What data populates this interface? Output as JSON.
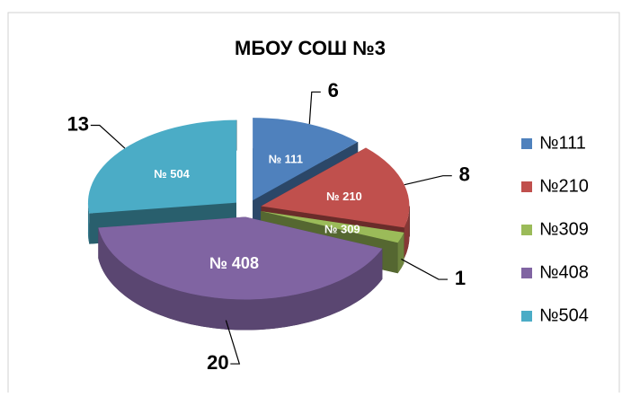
{
  "chart_data": {
    "type": "pie",
    "title": "МБОУ СОШ №3",
    "categories": [
      "№111",
      "№210",
      "№309",
      "№408",
      "№504"
    ],
    "category_labels": [
      "№ 111",
      "№ 210",
      "№ 309",
      "№ 408",
      "№ 504"
    ],
    "values": [
      6,
      8,
      1,
      20,
      13
    ],
    "colors": [
      "#4f81bd",
      "#c0504d",
      "#9bbb59",
      "#8064a2",
      "#4bacc6"
    ],
    "legend": "right",
    "exploded": true,
    "three_d": true
  }
}
